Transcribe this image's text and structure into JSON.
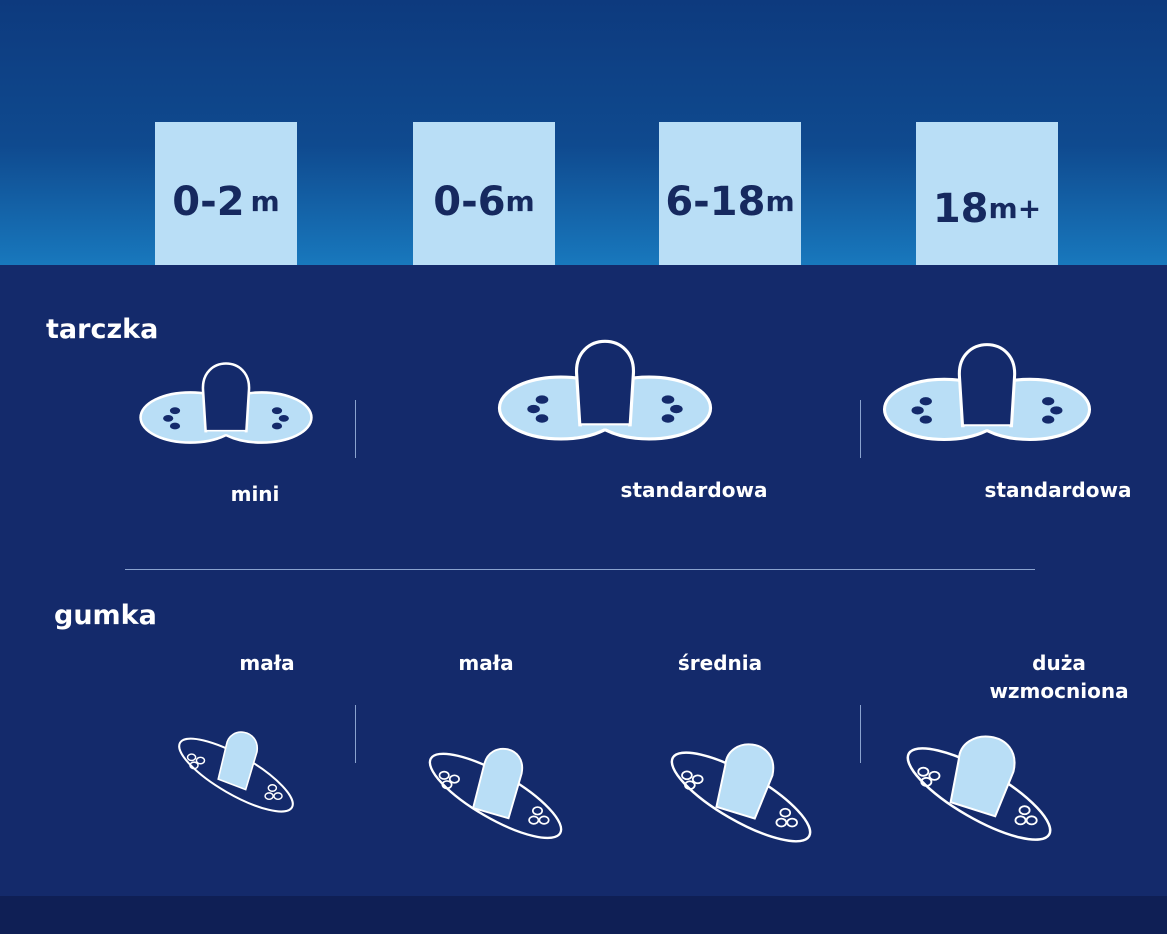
{
  "colors": {
    "top_band": "#0f4a8f",
    "background": "#142a6b",
    "box": "#b9def6",
    "box_text": "#16295f",
    "shape_light": "#b9def6",
    "outline": "#ffffff"
  },
  "ages": [
    {
      "num": "0-2",
      "unit": "m"
    },
    {
      "num": "0-6",
      "unit": "m"
    },
    {
      "num": "6-18",
      "unit": "m"
    },
    {
      "num": "18",
      "unit": "m+"
    }
  ],
  "shield": {
    "heading": "tarczka",
    "labels": [
      "mini",
      "standardowa",
      "standardowa"
    ]
  },
  "teat": {
    "heading": "gumka",
    "labels": [
      "mała",
      "mała",
      "średnia"
    ],
    "label4_line1": "duża",
    "label4_line2": "wzmocniona"
  }
}
